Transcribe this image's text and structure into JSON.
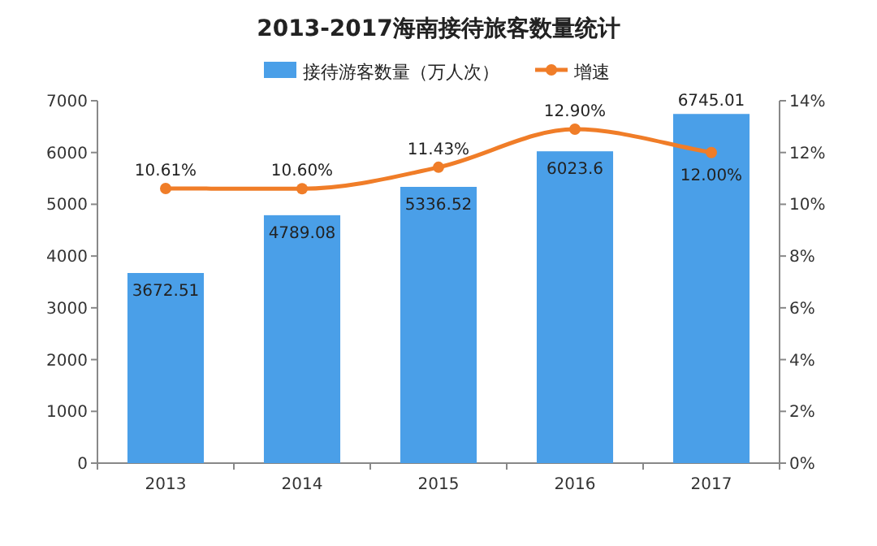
{
  "chart_data": {
    "type": "bar",
    "title": "2013-2017海南接待旅客数量统计",
    "categories": [
      "2013",
      "2014",
      "2015",
      "2016",
      "2017"
    ],
    "series": [
      {
        "name": "接待游客数量（万人次）",
        "color": "#4a9fe8",
        "values": [
          3672.51,
          4789.08,
          5336.52,
          6023.6,
          6745.01
        ],
        "value_labels": [
          "3672.51",
          "4789.08",
          "5336.52",
          "6023.6",
          "6745.01"
        ]
      },
      {
        "name": "增速",
        "type": "line",
        "axis": "y2",
        "color": "#f07d28",
        "values": [
          10.61,
          10.6,
          11.43,
          12.9,
          12.0
        ],
        "value_labels": [
          "10.61%",
          "10.60%",
          "11.43%",
          "12.90%",
          "12.00%"
        ]
      }
    ],
    "ylim": [
      0,
      7000
    ],
    "yticks": [
      0,
      1000,
      2000,
      3000,
      4000,
      5000,
      6000,
      7000
    ],
    "y2lim": [
      0,
      14
    ],
    "y2ticks": [
      {
        "value": 0,
        "label": "0%"
      },
      {
        "value": 2,
        "label": "2%"
      },
      {
        "value": 4,
        "label": "4%"
      },
      {
        "value": 6,
        "label": "6%"
      },
      {
        "value": 8,
        "label": "8%"
      },
      {
        "value": 10,
        "label": "10%"
      },
      {
        "value": 12,
        "label": "12%"
      },
      {
        "value": 14,
        "label": "14%"
      }
    ],
    "marker": "circle",
    "legend": "top",
    "grid": false
  }
}
